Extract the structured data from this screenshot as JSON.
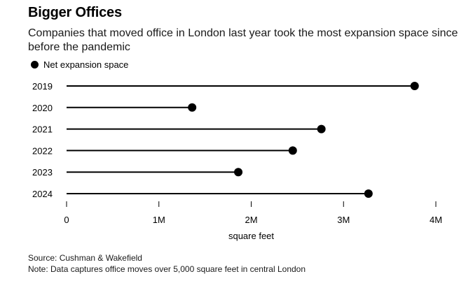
{
  "title": "Bigger Offices",
  "subtitle": "Companies that moved office in London last year took the most expansion space since before the pandemic",
  "source": "Source: Cushman & Wakefield",
  "note": "Note: Data captures office moves over 5,000 square feet in central London",
  "chart_data": {
    "type": "lollipop",
    "categories": [
      "2019",
      "2020",
      "2021",
      "2022",
      "2023",
      "2024"
    ],
    "series": [
      {
        "name": "Net expansion space",
        "values": [
          3770000,
          1360000,
          2760000,
          2450000,
          1860000,
          3270000
        ],
        "color": "#000000"
      }
    ],
    "xlabel": "square feet",
    "xlim": [
      0,
      4000000
    ],
    "xticks": [
      0,
      1000000,
      2000000,
      3000000,
      4000000
    ],
    "xtick_labels": [
      "0",
      "1M",
      "2M",
      "3M",
      "4M"
    ],
    "grid": false,
    "legend_position": "top-left"
  }
}
